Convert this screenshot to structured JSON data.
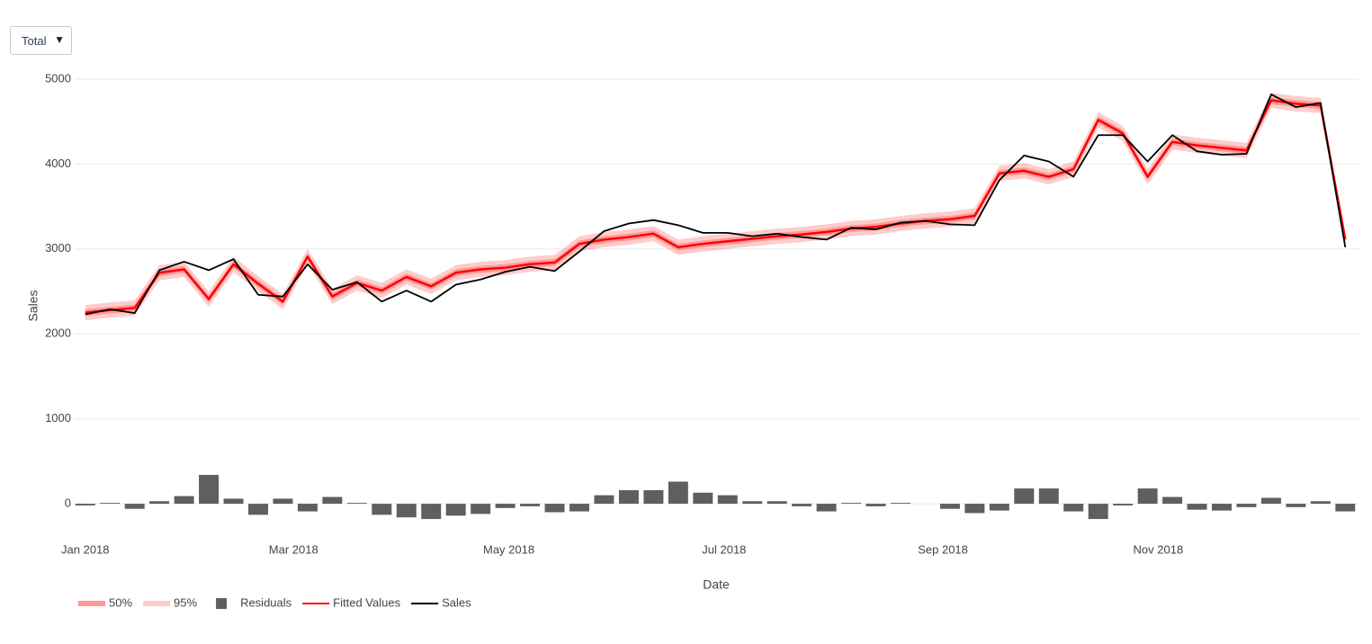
{
  "dropdown": {
    "label": "Total"
  },
  "chart_data": {
    "type": "line",
    "x_label": "Date",
    "y_label": "Sales",
    "x": [
      "2018-01-01",
      "2018-01-08",
      "2018-01-15",
      "2018-01-22",
      "2018-01-29",
      "2018-02-05",
      "2018-02-12",
      "2018-02-19",
      "2018-02-26",
      "2018-03-05",
      "2018-03-12",
      "2018-03-19",
      "2018-03-26",
      "2018-04-02",
      "2018-04-09",
      "2018-04-16",
      "2018-04-23",
      "2018-04-30",
      "2018-05-07",
      "2018-05-14",
      "2018-05-21",
      "2018-05-28",
      "2018-06-04",
      "2018-06-11",
      "2018-06-18",
      "2018-06-25",
      "2018-07-02",
      "2018-07-09",
      "2018-07-16",
      "2018-07-23",
      "2018-07-30",
      "2018-08-06",
      "2018-08-13",
      "2018-08-20",
      "2018-08-27",
      "2018-09-03",
      "2018-09-10",
      "2018-09-17",
      "2018-09-24",
      "2018-10-01",
      "2018-10-08",
      "2018-10-15",
      "2018-10-22",
      "2018-10-29",
      "2018-11-05",
      "2018-11-12",
      "2018-11-19",
      "2018-11-26",
      "2018-12-03",
      "2018-12-10",
      "2018-12-17",
      "2018-12-24"
    ],
    "series": [
      {
        "name": "50%",
        "kind": "band",
        "color": "rgba(255,0,0,0.25)",
        "lower": [
          2210,
          2240,
          2265,
          2680,
          2720,
          2370,
          2780,
          2550,
          2340,
          2870,
          2400,
          2560,
          2470,
          2630,
          2520,
          2680,
          2720,
          2740,
          2780,
          2800,
          3020,
          3070,
          3100,
          3140,
          2980,
          3020,
          3050,
          3080,
          3110,
          3130,
          3160,
          3200,
          3220,
          3260,
          3290,
          3310,
          3350,
          3850,
          3880,
          3810,
          3900,
          4480,
          4320,
          3810,
          4220,
          4180,
          4150,
          4120,
          4710,
          4670,
          4650,
          3070
        ],
        "upper": [
          2290,
          2320,
          2345,
          2760,
          2800,
          2450,
          2860,
          2630,
          2420,
          2950,
          2480,
          2640,
          2550,
          2710,
          2600,
          2760,
          2800,
          2820,
          2860,
          2880,
          3100,
          3150,
          3180,
          3220,
          3060,
          3100,
          3130,
          3160,
          3190,
          3210,
          3240,
          3280,
          3300,
          3340,
          3370,
          3390,
          3430,
          3930,
          3960,
          3890,
          3980,
          4560,
          4400,
          3890,
          4300,
          4260,
          4230,
          4200,
          4790,
          4750,
          4730,
          3150
        ]
      },
      {
        "name": "95%",
        "kind": "band",
        "color": "rgba(255,0,0,0.2)",
        "lower": [
          2160,
          2190,
          2215,
          2630,
          2670,
          2320,
          2730,
          2500,
          2290,
          2820,
          2350,
          2510,
          2420,
          2580,
          2470,
          2630,
          2670,
          2690,
          2730,
          2750,
          2970,
          3020,
          3050,
          3090,
          2930,
          2970,
          3000,
          3030,
          3060,
          3080,
          3110,
          3150,
          3170,
          3210,
          3240,
          3260,
          3300,
          3800,
          3830,
          3760,
          3850,
          4430,
          4270,
          3760,
          4170,
          4130,
          4100,
          4070,
          4660,
          4620,
          4600,
          3020
        ],
        "upper": [
          2340,
          2370,
          2395,
          2810,
          2850,
          2500,
          2910,
          2680,
          2470,
          3000,
          2530,
          2690,
          2600,
          2760,
          2650,
          2810,
          2850,
          2870,
          2910,
          2930,
          3150,
          3200,
          3230,
          3270,
          3110,
          3150,
          3180,
          3210,
          3240,
          3260,
          3290,
          3330,
          3350,
          3390,
          3420,
          3440,
          3480,
          3980,
          4010,
          3940,
          4030,
          4610,
          4450,
          3940,
          4350,
          4310,
          4280,
          4250,
          4840,
          4800,
          4780,
          3200
        ]
      },
      {
        "name": "Residuals",
        "kind": "bar",
        "color": "#5f5f5f",
        "values": [
          -20,
          10,
          -60,
          30,
          90,
          340,
          60,
          -130,
          60,
          -90,
          80,
          10,
          -130,
          -160,
          -180,
          -140,
          -120,
          -50,
          -30,
          -100,
          -90,
          100,
          160,
          160,
          260,
          130,
          100,
          30,
          30,
          -30,
          -90,
          10,
          -30,
          10,
          0,
          -60,
          -110,
          -80,
          180,
          180,
          -90,
          -180,
          -20,
          180,
          80,
          -70,
          -80,
          -40,
          70,
          -40,
          30,
          -90
        ]
      },
      {
        "name": "Fitted Values",
        "kind": "line",
        "color": "#ff0000",
        "width": 2.5,
        "values": [
          2250,
          2280,
          2305,
          2720,
          2760,
          2410,
          2820,
          2590,
          2380,
          2910,
          2440,
          2600,
          2510,
          2670,
          2560,
          2720,
          2760,
          2780,
          2820,
          2840,
          3060,
          3110,
          3140,
          3180,
          3020,
          3060,
          3090,
          3120,
          3150,
          3170,
          3200,
          3240,
          3260,
          3300,
          3330,
          3350,
          3390,
          3890,
          3920,
          3850,
          3940,
          4520,
          4360,
          3850,
          4260,
          4220,
          4190,
          4160,
          4750,
          4710,
          4690,
          3110
        ]
      },
      {
        "name": "Sales",
        "kind": "line",
        "color": "#000000",
        "width": 1.8,
        "values": [
          2230,
          2290,
          2245,
          2750,
          2850,
          2750,
          2880,
          2460,
          2440,
          2820,
          2520,
          2610,
          2380,
          2510,
          2380,
          2580,
          2640,
          2730,
          2790,
          2740,
          2970,
          3210,
          3300,
          3340,
          3280,
          3190,
          3190,
          3150,
          3180,
          3140,
          3110,
          3250,
          3230,
          3310,
          3330,
          3290,
          3280,
          3810,
          4100,
          4030,
          3850,
          4340,
          4340,
          4030,
          4340,
          4150,
          4110,
          4120,
          4820,
          4670,
          4720,
          3020
        ]
      }
    ],
    "xlim": [
      "2017-12-29",
      "2018-12-28"
    ],
    "xticks": [
      {
        "value": "2018-01-01",
        "label": "Jan 2018"
      },
      {
        "value": "2018-03-01",
        "label": "Mar 2018"
      },
      {
        "value": "2018-05-01",
        "label": "May 2018"
      },
      {
        "value": "2018-07-01",
        "label": "Jul 2018"
      },
      {
        "value": "2018-09-01",
        "label": "Sep 2018"
      },
      {
        "value": "2018-11-01",
        "label": "Nov 2018"
      }
    ],
    "ylim": [
      -370,
      5190
    ],
    "yticks": [
      0,
      1000,
      2000,
      3000,
      4000,
      5000
    ],
    "grid": true,
    "legend": "bottom-left"
  }
}
